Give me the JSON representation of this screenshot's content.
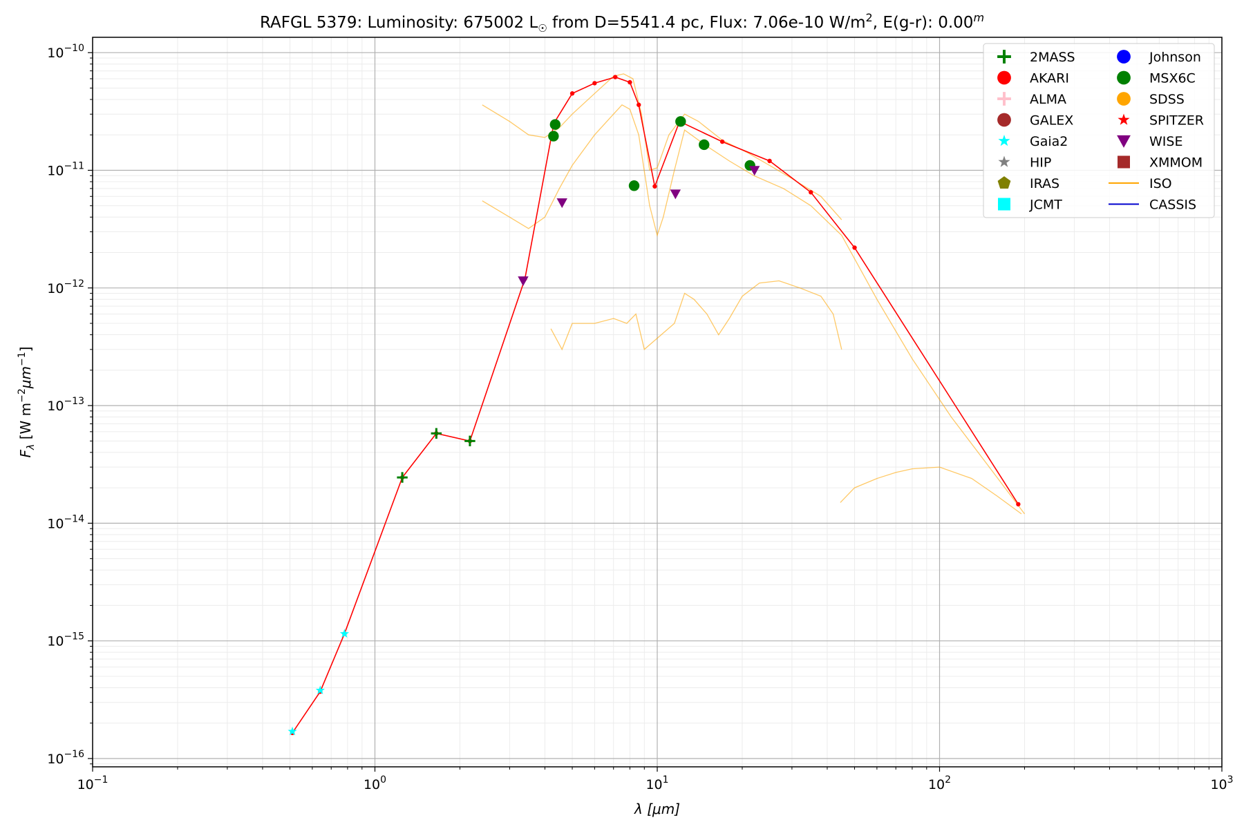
{
  "chart_data": {
    "type": "scatter",
    "title": {
      "object": "RAFGL 5379:",
      "lum_label": "Luminosity: 675002 L",
      "lum_sym": "☉",
      "dist": " from D=5541.4 pc, Flux: 7.06e-10 W/m",
      "flux_sup": "2",
      "ext": ", E(g-r): 0.00",
      "ext_sup": "m"
    },
    "xlabel": {
      "sym": "λ",
      "unit": "[μm]"
    },
    "ylabel": {
      "sym": "F",
      "sub": "λ",
      "unit1": "[W m",
      "sup1": "−2",
      "unit2": "μm",
      "sup2": "−1",
      "close": "]"
    },
    "x_scale": "log",
    "y_scale": "log",
    "xlim": [
      0.1,
      1000
    ],
    "ylim": [
      8.5e-17,
      1.35e-10
    ],
    "grid": true,
    "legend_position": "top-right",
    "x_ticks": [
      {
        "v": 0.1,
        "base": "10",
        "exp": "−1"
      },
      {
        "v": 1,
        "base": "10",
        "exp": "0"
      },
      {
        "v": 10,
        "base": "10",
        "exp": "1"
      },
      {
        "v": 100,
        "base": "10",
        "exp": "2"
      },
      {
        "v": 1000,
        "base": "10",
        "exp": "3"
      }
    ],
    "y_ticks": [
      {
        "v": 1e-16,
        "base": "10",
        "exp": "−16"
      },
      {
        "v": 1e-15,
        "base": "10",
        "exp": "−15"
      },
      {
        "v": 1e-14,
        "base": "10",
        "exp": "−14"
      },
      {
        "v": 1e-13,
        "base": "10",
        "exp": "−13"
      },
      {
        "v": 1e-12,
        "base": "10",
        "exp": "−12"
      },
      {
        "v": 1e-11,
        "base": "10",
        "exp": "−11"
      },
      {
        "v": 1e-10,
        "base": "10",
        "exp": "−10"
      }
    ],
    "model_line": {
      "color": "#ff0000",
      "points": [
        [
          0.51,
          1.65e-16
        ],
        [
          0.64,
          3.7e-16
        ],
        [
          0.78,
          1.15e-15
        ],
        [
          1.25,
          2.45e-14
        ],
        [
          1.65,
          5.8e-14
        ],
        [
          2.17,
          5e-14
        ],
        [
          3.4,
          1.2e-12
        ],
        [
          4.3,
          2.5e-11
        ],
        [
          5.0,
          4.5e-11
        ],
        [
          6.0,
          5.5e-11
        ],
        [
          7.1,
          6.2e-11
        ],
        [
          8.0,
          5.6e-11
        ],
        [
          8.6,
          3.6e-11
        ],
        [
          9.8,
          7.3e-12
        ],
        [
          12.0,
          2.6e-11
        ],
        [
          17.0,
          1.75e-11
        ],
        [
          25.0,
          1.2e-11
        ],
        [
          35.0,
          6.5e-12
        ],
        [
          50.0,
          2.2e-12
        ],
        [
          190.0,
          1.45e-14
        ]
      ]
    },
    "series": [
      {
        "name": "2MASS",
        "color": "#008000",
        "marker": "plus",
        "points": [
          [
            1.25,
            2.45e-14
          ],
          [
            1.65,
            5.8e-14
          ],
          [
            2.17,
            5e-14
          ]
        ]
      },
      {
        "name": "AKARI",
        "color": "#ff0000",
        "marker": "circle",
        "points": []
      },
      {
        "name": "ALMA",
        "color": "#ffc0cb",
        "marker": "plus",
        "points": []
      },
      {
        "name": "GALEX",
        "color": "#a52a2a",
        "marker": "circle",
        "points": []
      },
      {
        "name": "Gaia2",
        "color": "#00ffff",
        "marker": "star",
        "points": [
          [
            0.51,
            1.7e-16
          ],
          [
            0.64,
            3.8e-16
          ],
          [
            0.78,
            1.15e-15
          ]
        ]
      },
      {
        "name": "HIP",
        "color": "#808080",
        "marker": "star",
        "points": []
      },
      {
        "name": "IRAS",
        "color": "#808000",
        "marker": "pentagon",
        "points": []
      },
      {
        "name": "JCMT",
        "color": "#00ffff",
        "marker": "square",
        "points": []
      },
      {
        "name": "Johnson",
        "color": "#0000ff",
        "marker": "circle",
        "points": []
      },
      {
        "name": "MSX6C",
        "color": "#008000",
        "marker": "circle",
        "points": [
          [
            4.29,
            1.95e-11
          ],
          [
            4.35,
            2.45e-11
          ],
          [
            8.28,
            7.4e-12
          ],
          [
            12.1,
            2.6e-11
          ],
          [
            14.65,
            1.65e-11
          ],
          [
            21.3,
            1.1e-11
          ]
        ]
      },
      {
        "name": "SDSS",
        "color": "#ffa500",
        "marker": "circle",
        "points": []
      },
      {
        "name": "SPITZER",
        "color": "#ff0000",
        "marker": "star",
        "points": []
      },
      {
        "name": "WISE",
        "color": "#800080",
        "marker": "triangle-down",
        "points": [
          [
            3.35,
            1.15e-12
          ],
          [
            4.6,
            5.3e-12
          ],
          [
            11.6,
            6.3e-12
          ],
          [
            22.1,
            1e-11
          ]
        ]
      },
      {
        "name": "XMMOM",
        "color": "#a52a2a",
        "marker": "square",
        "points": []
      },
      {
        "name": "ISO",
        "color": "#ffa500",
        "marker": "line",
        "points": []
      },
      {
        "name": "CASSIS",
        "color": "#0000cd",
        "marker": "line",
        "points": []
      }
    ],
    "iso_spectra": [
      {
        "name": "ISO",
        "color": "#ffa500",
        "points": [
          [
            2.4,
            3.6e-11
          ],
          [
            3.0,
            2.6e-11
          ],
          [
            3.5,
            2e-11
          ],
          [
            4.0,
            1.9e-11
          ],
          [
            4.5,
            2.3e-11
          ],
          [
            5.0,
            3e-11
          ],
          [
            6.0,
            4.5e-11
          ],
          [
            7.0,
            6.3e-11
          ],
          [
            7.6,
            6.6e-11
          ],
          [
            8.2,
            6e-11
          ],
          [
            8.8,
            3e-11
          ],
          [
            9.4,
            1e-11
          ],
          [
            10.0,
            1.05e-11
          ],
          [
            11.0,
            2e-11
          ],
          [
            12.5,
            3e-11
          ],
          [
            14.0,
            2.6e-11
          ],
          [
            17.0,
            1.8e-11
          ],
          [
            21.0,
            1.4e-11
          ],
          [
            25.0,
            1.1e-11
          ],
          [
            30.0,
            8.5e-12
          ],
          [
            38.0,
            6e-12
          ],
          [
            45.0,
            3.8e-12
          ]
        ]
      },
      {
        "name": "ISO",
        "color": "#ffa500",
        "points": [
          [
            2.4,
            5.5e-12
          ],
          [
            3.0,
            4e-12
          ],
          [
            3.5,
            3.2e-12
          ],
          [
            4.0,
            4e-12
          ],
          [
            4.5,
            7e-12
          ],
          [
            5.0,
            1.1e-11
          ],
          [
            6.0,
            2e-11
          ],
          [
            7.0,
            3e-11
          ],
          [
            7.5,
            3.6e-11
          ],
          [
            8.0,
            3.3e-11
          ],
          [
            8.6,
            2e-11
          ],
          [
            9.4,
            5e-12
          ],
          [
            10.0,
            2.8e-12
          ],
          [
            10.5,
            4e-12
          ],
          [
            11.5,
            1e-11
          ],
          [
            12.5,
            2.2e-11
          ],
          [
            15.0,
            1.6e-11
          ],
          [
            18.0,
            1.2e-11
          ],
          [
            22.0,
            9e-12
          ],
          [
            28.0,
            7e-12
          ],
          [
            35.0,
            5e-12
          ],
          [
            45.0,
            2.8e-12
          ],
          [
            60.0,
            8e-13
          ],
          [
            80.0,
            2.5e-13
          ],
          [
            110.0,
            8e-14
          ],
          [
            150.0,
            3e-14
          ],
          [
            200.0,
            1.2e-14
          ]
        ]
      },
      {
        "name": "ISO",
        "color": "#ffa500",
        "points": [
          [
            4.2,
            4.5e-13
          ],
          [
            4.6,
            3e-13
          ],
          [
            5.0,
            5e-13
          ],
          [
            6.0,
            5e-13
          ],
          [
            7.0,
            5.5e-13
          ],
          [
            7.8,
            5e-13
          ],
          [
            8.4,
            6e-13
          ],
          [
            9.0,
            3e-13
          ],
          [
            11.5,
            5e-13
          ],
          [
            12.5,
            9e-13
          ],
          [
            13.5,
            8e-13
          ],
          [
            15.0,
            6e-13
          ],
          [
            16.5,
            4e-13
          ],
          [
            18.0,
            5.5e-13
          ],
          [
            20.0,
            8.5e-13
          ],
          [
            23.0,
            1.1e-12
          ],
          [
            27.0,
            1.15e-12
          ],
          [
            32.0,
            1e-12
          ],
          [
            38.0,
            8.5e-13
          ],
          [
            42.0,
            6e-13
          ],
          [
            45.0,
            3e-13
          ]
        ]
      },
      {
        "name": "ISO",
        "color": "#ffa500",
        "points": [
          [
            44.5,
            1.5e-14
          ],
          [
            50.0,
            2e-14
          ],
          [
            60.0,
            2.4e-14
          ],
          [
            70.0,
            2.7e-14
          ],
          [
            80.0,
            2.9e-14
          ],
          [
            100.0,
            3e-14
          ],
          [
            130.0,
            2.4e-14
          ],
          [
            160.0,
            1.7e-14
          ],
          [
            195.0,
            1.2e-14
          ]
        ]
      }
    ]
  }
}
